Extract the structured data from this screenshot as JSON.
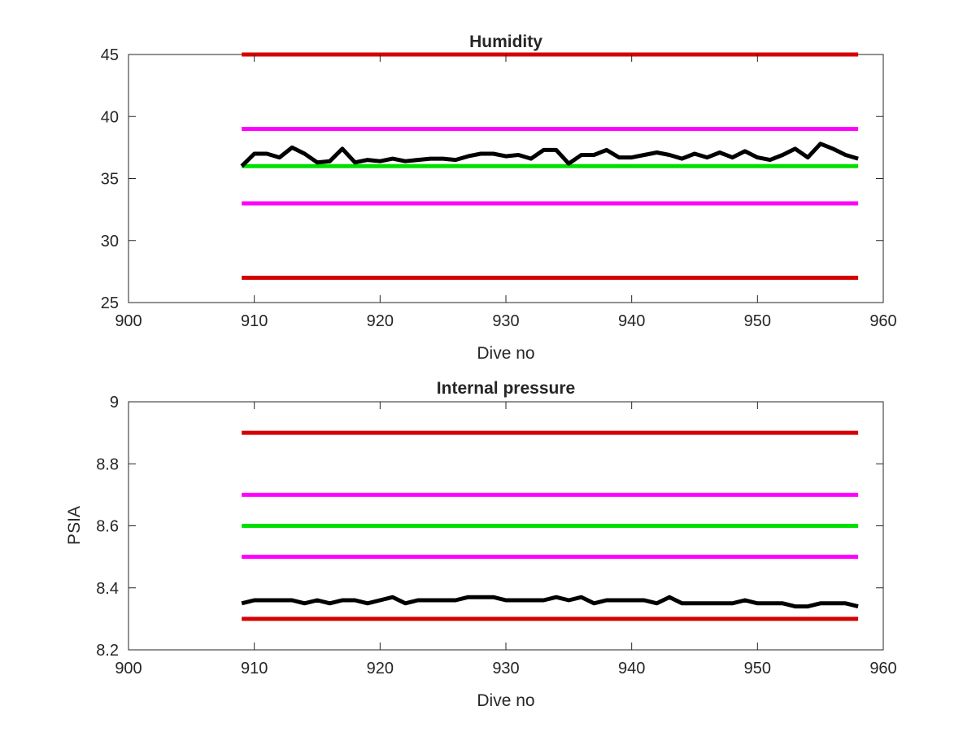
{
  "chart_data": [
    {
      "type": "line",
      "title": "Humidity",
      "xlabel": "Dive no",
      "ylabel": "",
      "xlim": [
        900,
        960
      ],
      "ylim": [
        25,
        45
      ],
      "xticks": [
        900,
        910,
        920,
        930,
        940,
        950,
        960
      ],
      "yticks": [
        25,
        30,
        35,
        40,
        45
      ],
      "grid": false,
      "legend": "none",
      "series": [
        {
          "color": "#d40000",
          "x": [
            909,
            958
          ],
          "y": [
            45,
            45
          ]
        },
        {
          "color": "#ff00ff",
          "x": [
            909,
            958
          ],
          "y": [
            39,
            39
          ]
        },
        {
          "color": "#00e000",
          "x": [
            909,
            958
          ],
          "y": [
            36,
            36
          ]
        },
        {
          "color": "#ff00ff",
          "x": [
            909,
            958
          ],
          "y": [
            33,
            33
          ]
        },
        {
          "color": "#d40000",
          "x": [
            909,
            958
          ],
          "y": [
            27,
            27
          ]
        },
        {
          "color": "#000000",
          "x": [
            909,
            910,
            911,
            912,
            913,
            914,
            915,
            916,
            917,
            918,
            919,
            920,
            921,
            922,
            923,
            924,
            925,
            926,
            927,
            928,
            929,
            930,
            931,
            932,
            933,
            934,
            935,
            936,
            937,
            938,
            939,
            940,
            941,
            942,
            943,
            944,
            945,
            946,
            947,
            948,
            949,
            950,
            951,
            952,
            953,
            954,
            955,
            956,
            957,
            958
          ],
          "y": [
            36.0,
            37.0,
            37.0,
            36.7,
            37.5,
            37.0,
            36.3,
            36.4,
            37.4,
            36.3,
            36.5,
            36.4,
            36.6,
            36.4,
            36.5,
            36.6,
            36.6,
            36.5,
            36.8,
            37.0,
            37.0,
            36.8,
            36.9,
            36.6,
            37.3,
            37.3,
            36.2,
            36.9,
            36.9,
            37.3,
            36.7,
            36.7,
            36.9,
            37.1,
            36.9,
            36.6,
            37.0,
            36.7,
            37.1,
            36.7,
            37.2,
            36.7,
            36.5,
            36.9,
            37.4,
            36.7,
            37.8,
            37.4,
            36.9,
            36.6
          ]
        }
      ]
    },
    {
      "type": "line",
      "title": "Internal pressure",
      "xlabel": "Dive no",
      "ylabel": "PSIA",
      "xlim": [
        900,
        960
      ],
      "ylim": [
        8.2,
        9.0
      ],
      "xticks": [
        900,
        910,
        920,
        930,
        940,
        950,
        960
      ],
      "yticks": [
        8.2,
        8.4,
        8.6,
        8.8,
        9.0
      ],
      "ytick_labels": [
        "8.2",
        "8.4",
        "8.6",
        "8.8",
        "9"
      ],
      "grid": false,
      "legend": "none",
      "series": [
        {
          "color": "#d40000",
          "x": [
            909,
            958
          ],
          "y": [
            8.9,
            8.9
          ]
        },
        {
          "color": "#ff00ff",
          "x": [
            909,
            958
          ],
          "y": [
            8.7,
            8.7
          ]
        },
        {
          "color": "#00e000",
          "x": [
            909,
            958
          ],
          "y": [
            8.6,
            8.6
          ]
        },
        {
          "color": "#ff00ff",
          "x": [
            909,
            958
          ],
          "y": [
            8.5,
            8.5
          ]
        },
        {
          "color": "#d40000",
          "x": [
            909,
            958
          ],
          "y": [
            8.3,
            8.3
          ]
        },
        {
          "color": "#000000",
          "x": [
            909,
            910,
            911,
            912,
            913,
            914,
            915,
            916,
            917,
            918,
            919,
            920,
            921,
            922,
            923,
            924,
            925,
            926,
            927,
            928,
            929,
            930,
            931,
            932,
            933,
            934,
            935,
            936,
            937,
            938,
            939,
            940,
            941,
            942,
            943,
            944,
            945,
            946,
            947,
            948,
            949,
            950,
            951,
            952,
            953,
            954,
            955,
            956,
            957,
            958
          ],
          "y": [
            8.35,
            8.36,
            8.36,
            8.36,
            8.36,
            8.35,
            8.36,
            8.35,
            8.36,
            8.36,
            8.35,
            8.36,
            8.37,
            8.35,
            8.36,
            8.36,
            8.36,
            8.36,
            8.37,
            8.37,
            8.37,
            8.36,
            8.36,
            8.36,
            8.36,
            8.37,
            8.36,
            8.37,
            8.35,
            8.36,
            8.36,
            8.36,
            8.36,
            8.35,
            8.37,
            8.35,
            8.35,
            8.35,
            8.35,
            8.35,
            8.36,
            8.35,
            8.35,
            8.35,
            8.34,
            8.34,
            8.35,
            8.35,
            8.35,
            8.34
          ]
        }
      ]
    }
  ]
}
